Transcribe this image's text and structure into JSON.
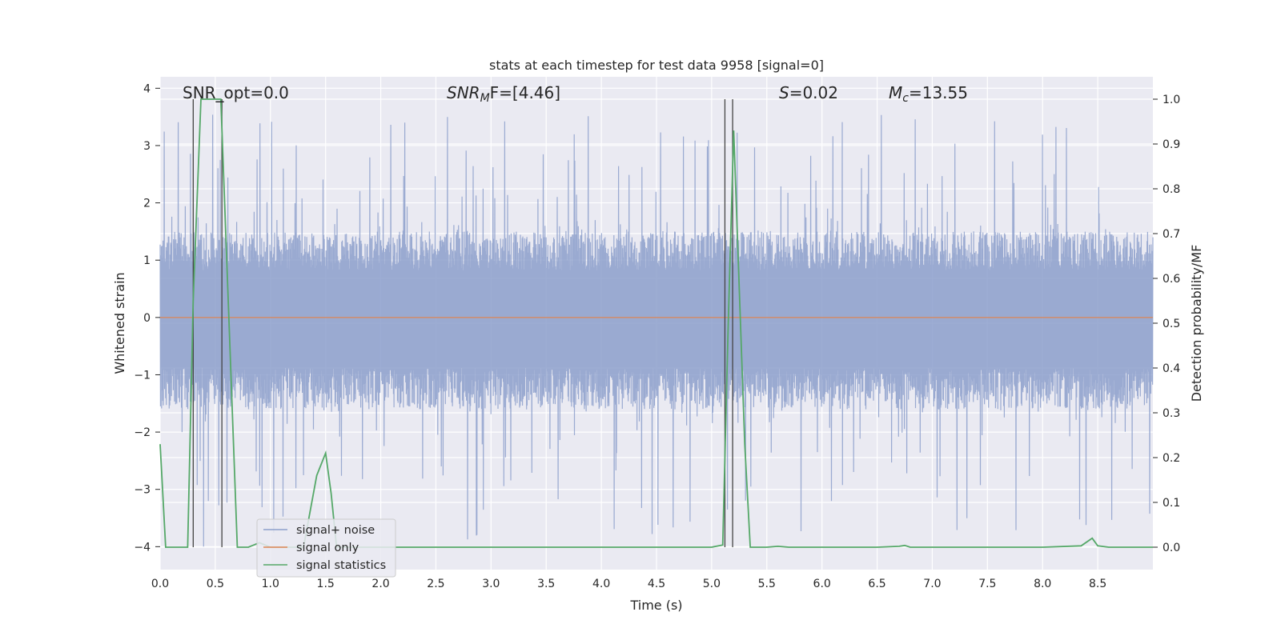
{
  "colors": {
    "axes_bg": "#eaeaf2",
    "grid": "#ffffff",
    "noise": "#8c9fcb",
    "signal": "#dd8452",
    "stats": "#55a868",
    "vline": "#444444"
  },
  "chart_data": {
    "type": "line",
    "title": "stats at each timestep for test data 9958 [signal=0]",
    "xlabel": "Time (s)",
    "ylabel": "Whitened strain",
    "y2label": "Detection probability/MF",
    "xlim": [
      0.0,
      9.0
    ],
    "ylim": [
      -4.4,
      4.2
    ],
    "y2lim": [
      -0.05,
      1.05
    ],
    "x_ticks": [
      0.0,
      0.5,
      1.0,
      1.5,
      2.0,
      2.5,
      3.0,
      3.5,
      4.0,
      4.5,
      5.0,
      5.5,
      6.0,
      6.5,
      7.0,
      7.5,
      8.0,
      8.5
    ],
    "x_tick_labels": [
      "0.0",
      "0.5",
      "1.0",
      "1.5",
      "2.0",
      "2.5",
      "3.0",
      "3.5",
      "4.0",
      "4.5",
      "5.0",
      "5.5",
      "6.0",
      "6.5",
      "7.0",
      "7.5",
      "8.0",
      "8.5"
    ],
    "y_ticks": [
      4,
      3,
      2,
      1,
      0,
      -1,
      -2,
      -3,
      -4
    ],
    "y_tick_labels": [
      "4",
      "3",
      "2",
      "1",
      "0",
      "−1",
      "−2",
      "−3",
      "−4"
    ],
    "y2_ticks": [
      1.0,
      0.9,
      0.8,
      0.7,
      0.6,
      0.5,
      0.4,
      0.3,
      0.2,
      0.1,
      0.0
    ],
    "y2_tick_labels": [
      "1.0",
      "0.9",
      "0.8",
      "0.7",
      "0.6",
      "0.5",
      "0.4",
      "0.3",
      "0.2",
      "0.1",
      "0.0"
    ],
    "annotations": {
      "snr_opt": "SNR_opt=0.0",
      "snr_mf_main": "SNR",
      "snr_mf_sub": "M",
      "snr_mf_rest": "F=[4.46]",
      "s_label": "S",
      "s_value": "=0.02",
      "mc_main": "M",
      "mc_sub": "c",
      "mc_value": "=13.55"
    },
    "legend": {
      "location": "lower-left",
      "entries": [
        "signal+ noise",
        "signal only",
        "signal statistics"
      ]
    },
    "series": [
      {
        "name": "signal+ noise",
        "kind": "dense-noise",
        "envelope": {
          "upper_typical": 1.5,
          "lower_typical": -1.6,
          "peak_max": 3.55,
          "peak_min": -4.0
        }
      },
      {
        "name": "signal only",
        "kind": "constant",
        "value": 0.0
      },
      {
        "name": "signal statistics",
        "axis": "right",
        "x": [
          0.0,
          0.05,
          0.25,
          0.3,
          0.37,
          0.55,
          0.7,
          0.8,
          0.85,
          0.9,
          1.0,
          1.3,
          1.42,
          1.5,
          1.55,
          1.6,
          1.7,
          1.8,
          2.0,
          2.5,
          3.0,
          3.5,
          4.0,
          4.5,
          5.0,
          5.1,
          5.15,
          5.2,
          5.3,
          5.35,
          5.4,
          5.5,
          5.6,
          5.7,
          6.0,
          6.5,
          6.7,
          6.75,
          6.8,
          7.0,
          7.5,
          8.0,
          8.35,
          8.45,
          8.5,
          8.6,
          9.0
        ],
        "values": [
          0.23,
          0.0,
          0.0,
          0.55,
          1.0,
          1.0,
          0.0,
          0.0,
          0.005,
          0.01,
          0.0,
          0.0,
          0.16,
          0.21,
          0.12,
          0.0,
          0.0,
          0.0,
          0.0,
          0.0,
          0.0,
          0.0,
          0.0,
          0.0,
          0.0,
          0.005,
          0.5,
          0.93,
          0.23,
          0.0,
          0.0,
          0.0,
          0.002,
          0.0,
          0.0,
          0.0,
          0.002,
          0.004,
          0.0,
          0.0,
          0.0,
          0.0,
          0.003,
          0.02,
          0.003,
          0.0,
          0.0
        ]
      }
    ],
    "vertical_lines": [
      0.3,
      0.56,
      5.12,
      5.19
    ]
  }
}
